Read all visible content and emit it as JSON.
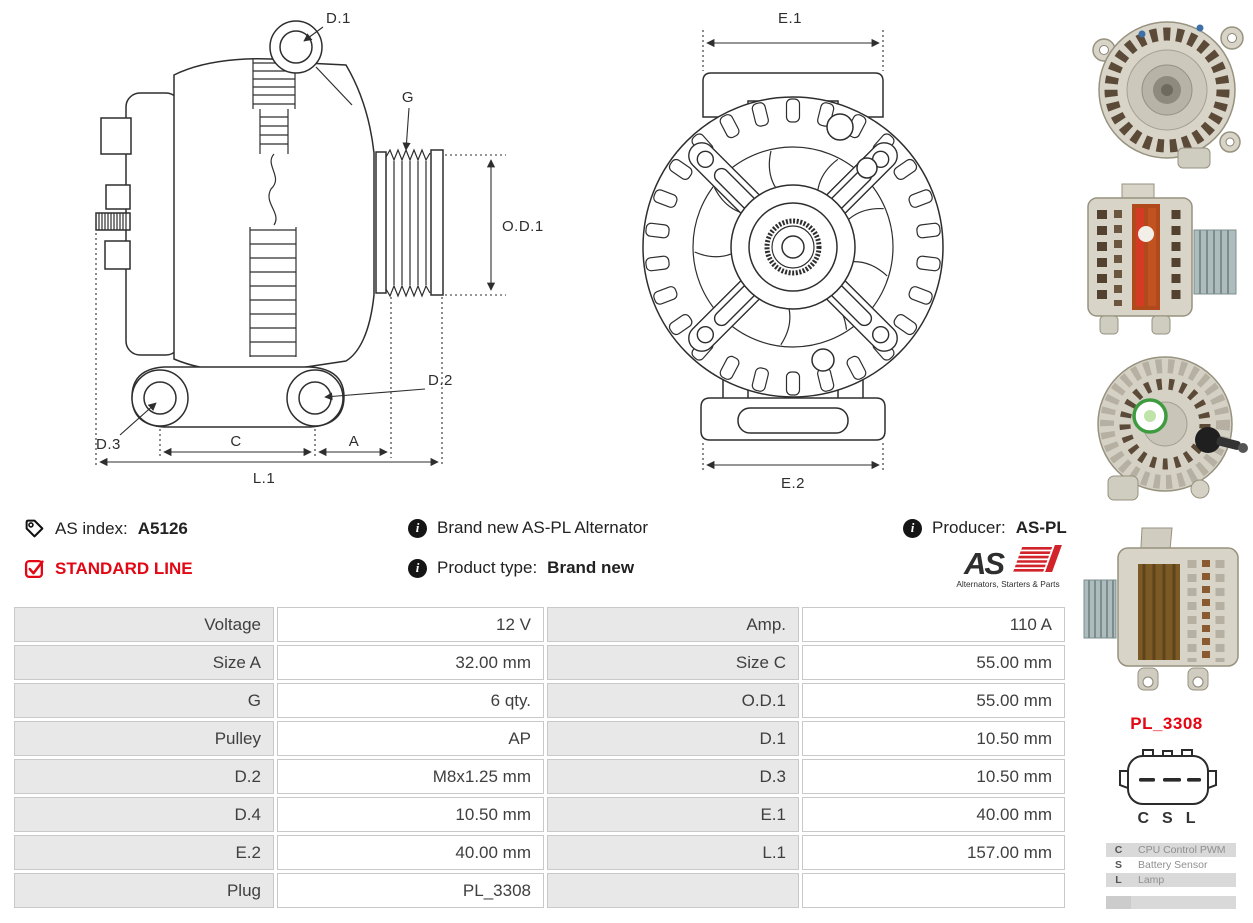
{
  "header": {
    "as_index": {
      "label": "AS index:",
      "value": "A5126"
    },
    "line_badge": "STANDARD LINE",
    "description": "Brand new AS-PL Alternator",
    "product_type": {
      "label": "Product type:",
      "value": "Brand new"
    },
    "producer": {
      "label": "Producer:",
      "value": "AS-PL"
    },
    "logo": {
      "text": "AS",
      "tagline": "Alternators, Starters & Parts"
    }
  },
  "icons": {
    "info_glyph": "i"
  },
  "drawings": {
    "side_view_labels": {
      "d1": "D.1",
      "g": "G",
      "od1": "O.D.1",
      "d2": "D.2",
      "d3": "D.3",
      "c": "C",
      "a": "A",
      "l1": "L.1"
    },
    "front_view_labels": {
      "e1": "E.1",
      "e2": "E.2"
    }
  },
  "spec_table": {
    "rows": [
      {
        "label_left": "Voltage",
        "value_left": "12 V",
        "label_right": "Amp.",
        "value_right": "110 A"
      },
      {
        "label_left": "Size A",
        "value_left": "32.00 mm",
        "label_right": "Size C",
        "value_right": "55.00 mm"
      },
      {
        "label_left": "G",
        "value_left": "6 qty.",
        "label_right": "O.D.1",
        "value_right": "55.00 mm"
      },
      {
        "label_left": "Pulley",
        "value_left": "AP",
        "label_right": "D.1",
        "value_right": "10.50 mm"
      },
      {
        "label_left": "D.2",
        "value_left": "M8x1.25 mm",
        "label_right": "D.3",
        "value_right": "10.50 mm"
      },
      {
        "label_left": "D.4",
        "value_left": "10.50 mm",
        "label_right": "E.1",
        "value_right": "40.00 mm"
      },
      {
        "label_left": "E.2",
        "value_left": "40.00 mm",
        "label_right": "L.1",
        "value_right": "157.00 mm"
      },
      {
        "label_left": "Plug",
        "value_left": "PL_3308",
        "label_right": "",
        "value_right": ""
      }
    ]
  },
  "connector": {
    "name": "PL_3308",
    "pins": [
      "C",
      "S",
      "L"
    ],
    "legend": [
      {
        "key": "C",
        "description": "CPU Control PWM"
      },
      {
        "key": "S",
        "description": "Battery Sensor"
      },
      {
        "key": "L",
        "description": "Lamp"
      }
    ]
  },
  "photos": [
    {
      "name": "alternator-front-three-quarter"
    },
    {
      "name": "alternator-side-pulley-right"
    },
    {
      "name": "alternator-rear-with-plug"
    },
    {
      "name": "alternator-side-pulley-left"
    }
  ],
  "colors": {
    "accent_red": "#e30613",
    "logo_red": "#d2232a",
    "table_border": "#c9c9c9",
    "table_label_bg": "#e8e8e8",
    "table_text": "#3f3f3f"
  }
}
